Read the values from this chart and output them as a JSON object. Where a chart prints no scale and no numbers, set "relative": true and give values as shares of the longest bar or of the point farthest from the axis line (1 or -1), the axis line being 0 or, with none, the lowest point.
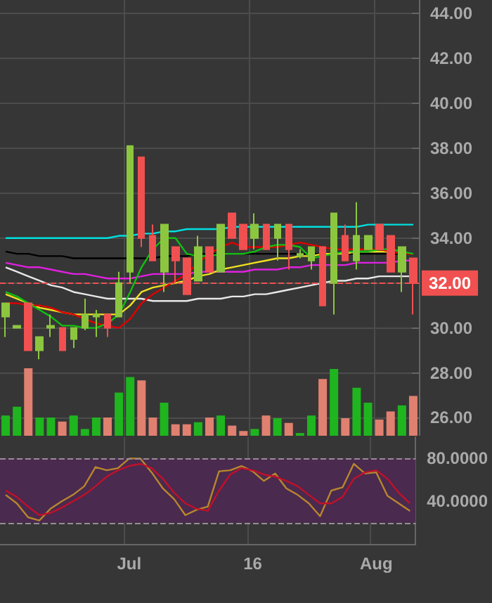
{
  "chart_data": [
    {
      "type": "candlestick",
      "categories": [
        null,
        null,
        null,
        null,
        null,
        null,
        null,
        null,
        null,
        null,
        null,
        null,
        null,
        null,
        null,
        null,
        null,
        null,
        null,
        null,
        null,
        null,
        null,
        null,
        null,
        null,
        null,
        null,
        null,
        null,
        null,
        null,
        null,
        null,
        null,
        null,
        null
      ],
      "ohlc": [
        [
          30.5,
          31.1,
          29.6,
          31.1
        ],
        [
          30.0,
          30.1,
          30.0,
          30.1
        ],
        [
          31.1,
          31.1,
          29.0,
          29.0
        ],
        [
          29.0,
          29.6,
          28.6,
          29.6
        ],
        [
          30.0,
          30.6,
          29.6,
          30.1
        ],
        [
          30.0,
          30.0,
          29.0,
          29.0
        ],
        [
          29.5,
          30.0,
          29.1,
          30.0
        ],
        [
          30.0,
          31.3,
          29.9,
          30.6
        ],
        [
          30.5,
          30.8,
          29.6,
          30.6
        ],
        [
          30.6,
          30.6,
          29.6,
          30.0
        ],
        [
          30.5,
          32.5,
          30.5,
          32.0
        ],
        [
          32.5,
          38.1,
          32.0,
          38.1
        ],
        [
          37.6,
          37.6,
          33.6,
          34.0
        ],
        [
          34.1,
          34.6,
          33.0,
          33.0
        ],
        [
          32.5,
          34.6,
          31.6,
          34.6
        ],
        [
          33.6,
          33.6,
          32.0,
          33.0
        ],
        [
          33.1,
          33.1,
          31.5,
          31.5
        ],
        [
          32.1,
          34.1,
          32.1,
          33.6
        ],
        [
          33.6,
          33.6,
          32.5,
          32.5
        ],
        [
          32.5,
          34.6,
          32.5,
          34.6
        ],
        [
          35.1,
          35.1,
          34.0,
          34.0
        ],
        [
          34.6,
          34.6,
          33.5,
          33.5
        ],
        [
          34.0,
          35.1,
          33.5,
          34.6
        ],
        [
          34.6,
          34.6,
          33.5,
          33.5
        ],
        [
          34.0,
          34.6,
          33.0,
          34.6
        ],
        [
          34.6,
          34.6,
          32.6,
          33.5
        ],
        [
          33.2,
          33.5,
          33.1,
          33.3
        ],
        [
          33.0,
          33.6,
          32.6,
          33.6
        ],
        [
          33.6,
          33.6,
          31.0,
          31.0
        ],
        [
          32.0,
          35.1,
          30.6,
          35.1
        ],
        [
          34.1,
          34.6,
          33.0,
          33.0
        ],
        [
          33.0,
          35.6,
          32.6,
          34.1
        ],
        [
          33.5,
          34.1,
          33.5,
          34.1
        ],
        [
          34.6,
          34.6,
          33.5,
          33.5
        ],
        [
          34.1,
          34.1,
          32.5,
          32.5
        ],
        [
          32.5,
          33.6,
          31.6,
          33.6
        ],
        [
          33.1,
          33.1,
          30.6,
          32.0
        ]
      ],
      "colors": [
        "#8cc63f",
        "#8cc63f",
        "#f05050",
        "#8cc63f",
        "#8cc63f",
        "#f05050",
        "#8cc63f",
        "#8cc63f",
        "#8cc63f",
        "#f05050",
        "#8cc63f",
        "#8cc63f",
        "#f05050",
        "#f05050",
        "#8cc63f",
        "#f05050",
        "#f05050",
        "#8cc63f",
        "#f05050",
        "#8cc63f",
        "#f05050",
        "#f05050",
        "#8cc63f",
        "#f05050",
        "#8cc63f",
        "#f05050",
        "#8cc63f",
        "#8cc63f",
        "#f05050",
        "#8cc63f",
        "#f05050",
        "#8cc63f",
        "#8cc63f",
        "#f05050",
        "#f05050",
        "#8cc63f",
        "#f05050"
      ],
      "series": [
        {
          "type": "line",
          "color": "#00e0e0",
          "values": [
            34.0,
            34.0,
            34.0,
            34.0,
            34.0,
            34.0,
            34.0,
            34.0,
            34.0,
            34.0,
            34.1,
            34.1,
            34.2,
            34.2,
            34.3,
            34.3,
            34.4,
            34.4,
            34.4,
            34.4,
            34.5,
            34.5,
            34.5,
            34.5,
            34.5,
            34.5,
            34.5,
            34.5,
            34.5,
            34.5,
            34.5,
            34.5,
            34.6,
            34.6,
            34.6,
            34.6,
            34.6
          ]
        },
        {
          "type": "line",
          "color": "#000000",
          "values": [
            33.4,
            33.3,
            33.3,
            33.2,
            33.2,
            33.2,
            33.1,
            33.1,
            33.1,
            33.1,
            33.1,
            33.1,
            33.1,
            33.1,
            33.2,
            33.2,
            33.2,
            33.3,
            33.3,
            33.3,
            null,
            33.3,
            33.3,
            33.3,
            33.3,
            33.3,
            33.3,
            33.3,
            33.3,
            null,
            33.3,
            33.3,
            33.3,
            33.3,
            33.3,
            33.3,
            null
          ]
        },
        {
          "type": "line",
          "color": "#e020e0",
          "values": [
            32.9,
            32.8,
            32.7,
            32.7,
            32.6,
            32.5,
            32.4,
            32.4,
            32.3,
            32.2,
            32.2,
            32.2,
            32.3,
            32.4,
            32.4,
            32.4,
            32.4,
            32.5,
            32.5,
            32.5,
            32.5,
            32.5,
            32.6,
            32.6,
            32.6,
            32.7,
            32.7,
            32.8,
            32.8,
            32.8,
            32.8,
            32.9,
            32.9,
            32.9,
            32.9,
            33.0,
            33.0
          ]
        },
        {
          "type": "line",
          "color": "#e8e8e8",
          "values": [
            32.7,
            32.5,
            32.3,
            32.1,
            31.9,
            31.8,
            31.6,
            31.5,
            31.4,
            31.3,
            31.3,
            31.3,
            31.3,
            31.2,
            31.2,
            31.2,
            31.2,
            31.3,
            31.3,
            31.3,
            31.4,
            31.4,
            31.5,
            31.5,
            31.6,
            31.7,
            31.8,
            31.9,
            32.0,
            32.1,
            32.1,
            32.2,
            32.2,
            32.3,
            32.3,
            32.3,
            32.3
          ]
        },
        {
          "type": "line",
          "color": "#f0e020",
          "values": [
            31.5,
            31.3,
            31.1,
            30.9,
            30.8,
            30.7,
            30.6,
            30.6,
            30.6,
            30.6,
            30.6,
            31.0,
            31.6,
            31.8,
            31.9,
            32.0,
            32.1,
            32.3,
            32.4,
            32.6,
            32.7,
            32.8,
            32.9,
            33.0,
            33.1,
            33.1,
            33.2,
            33.2,
            33.3,
            33.3,
            33.3,
            33.4,
            33.4,
            33.4,
            33.4,
            null,
            null
          ]
        },
        {
          "type": "line",
          "color": "#e00000",
          "values": [
            31.1,
            31.1,
            31.0,
            31.0,
            30.9,
            30.7,
            30.6,
            30.4,
            30.2,
            30.1,
            30.0,
            30.4,
            31.1,
            31.5,
            31.8,
            32.1,
            32.4,
            32.9,
            33.3,
            33.6,
            33.8,
            33.6,
            33.6,
            33.6,
            33.6,
            33.7,
            33.8,
            33.7,
            33.6,
            33.5,
            33.5,
            33.5,
            33.5,
            33.5,
            33.4,
            33.3,
            33.3
          ]
        },
        {
          "type": "line",
          "color": "#10c010",
          "values": [
            31.6,
            31.4,
            31.1,
            30.8,
            30.5,
            30.1,
            30.1,
            30.0,
            30.0,
            30.2,
            30.6,
            31.6,
            32.7,
            33.5,
            34.0,
            34.0,
            33.3,
            33.2,
            33.2,
            33.3,
            33.3,
            33.3,
            33.4,
            33.6,
            33.7,
            33.7,
            33.6,
            33.1,
            33.2,
            33.3,
            33.4,
            33.4,
            33.4,
            33.5,
            33.5,
            33.4,
            33.3
          ]
        }
      ],
      "ylim": [
        25.2,
        44.6
      ],
      "yticks": [
        {
          "value": 26,
          "label": "26.00"
        },
        {
          "value": 28,
          "label": "28.00"
        },
        {
          "value": 30,
          "label": "30.00"
        },
        {
          "value": 32,
          "label": "32.00"
        },
        {
          "value": 34,
          "label": "34.00"
        },
        {
          "value": 36,
          "label": "36.00"
        },
        {
          "value": 38,
          "label": "38.00"
        },
        {
          "value": 40,
          "label": "40.00"
        },
        {
          "value": 42,
          "label": "42.00"
        },
        {
          "value": 44,
          "label": "44.00"
        }
      ],
      "ref_lines": [
        {
          "axis": "y",
          "value": 32,
          "label": "32.00",
          "color": "#f05050",
          "line_style": "dashed"
        }
      ],
      "grid": true,
      "marker": "none",
      "tick_labels": "y"
    },
    {
      "type": "bar",
      "relative": true,
      "categories": [
        null,
        null,
        null,
        null,
        null,
        null,
        null,
        null,
        null,
        null,
        null,
        null,
        null,
        null,
        null,
        null,
        null,
        null,
        null,
        null,
        null,
        null,
        null,
        null,
        null,
        null,
        null,
        null,
        null,
        null,
        null,
        null,
        null,
        null,
        null,
        null,
        null
      ],
      "values": [
        0.3,
        0.43,
        1.0,
        0.27,
        0.27,
        0.21,
        0.3,
        0.1,
        0.27,
        0.27,
        0.64,
        0.87,
        0.82,
        0.27,
        0.49,
        0.17,
        0.17,
        0.2,
        0.27,
        0.3,
        0.15,
        0.07,
        0.1,
        0.3,
        0.26,
        0.19,
        0.04,
        0.3,
        0.84,
        0.99,
        0.26,
        0.71,
        0.49,
        0.24,
        0.36,
        0.45,
        0.59
      ],
      "colors": [
        "#1fb51f",
        "#1fb51f",
        "#e08070",
        "#1fb51f",
        "#1fb51f",
        "#e08070",
        "#1fb51f",
        "#1fb51f",
        "#1fb51f",
        "#e08070",
        "#1fb51f",
        "#1fb51f",
        "#e08070",
        "#e08070",
        "#1fb51f",
        "#e08070",
        "#e08070",
        "#1fb51f",
        "#e08070",
        "#1fb51f",
        "#e08070",
        "#e08070",
        "#1fb51f",
        "#e08070",
        "#1fb51f",
        "#e08070",
        "#1fb51f",
        "#1fb51f",
        "#e08070",
        "#1fb51f",
        "#e08070",
        "#1fb51f",
        "#1fb51f",
        "#e08070",
        "#e08070",
        "#1fb51f",
        "#e08070"
      ],
      "tick_labels": false
    },
    {
      "type": "line",
      "categories": [
        null,
        null,
        null,
        null,
        null,
        null,
        null,
        null,
        null,
        null,
        null,
        "Jul",
        null,
        null,
        null,
        null,
        null,
        null,
        null,
        null,
        null,
        null,
        "16",
        null,
        null,
        null,
        null,
        null,
        null,
        null,
        null,
        null,
        null,
        "Aug",
        null,
        null,
        null
      ],
      "series": [
        {
          "color": "#b8862e",
          "values": [
            46,
            38,
            25,
            22,
            33,
            40,
            46,
            54,
            72,
            69,
            71,
            80,
            80,
            67,
            52,
            42,
            27,
            32,
            35,
            68,
            69,
            73,
            68,
            59,
            66,
            52,
            46,
            38,
            26,
            50,
            53,
            75,
            66,
            67,
            45,
            38,
            31
          ]
        },
        {
          "color": "#c0102a",
          "values": [
            50,
            44,
            35,
            27,
            29,
            34,
            40,
            46,
            54,
            63,
            69,
            73,
            75,
            71,
            61,
            48,
            38,
            33,
            31,
            50,
            65,
            71,
            69,
            65,
            63,
            59,
            54,
            46,
            38,
            38,
            44,
            61,
            67,
            69,
            61,
            48,
            38
          ]
        }
      ],
      "ylim": [
        0,
        100
      ],
      "yticks": [
        {
          "value": 40,
          "label": "40.0000"
        },
        {
          "value": 80,
          "label": "80.0000"
        }
      ],
      "bands": [
        {
          "axis": "y",
          "from": 20,
          "to": 80,
          "color": "#4a2a4e"
        }
      ],
      "ref_lines": [
        {
          "axis": "y",
          "value": 80,
          "color": "#9a8a9a",
          "line_style": "dashed"
        },
        {
          "axis": "y",
          "value": 20,
          "color": "#9a8a9a",
          "line_style": "dashed"
        }
      ],
      "grid": true,
      "marker": "none"
    }
  ]
}
